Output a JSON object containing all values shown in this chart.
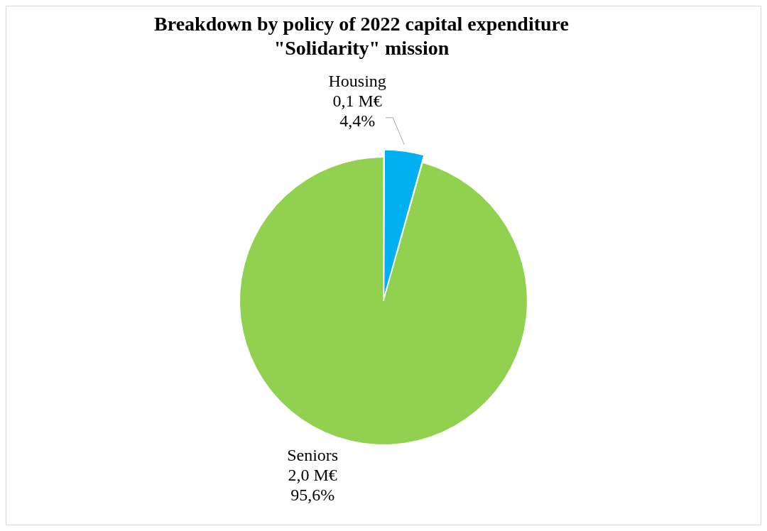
{
  "chart_data": {
    "type": "pie",
    "title": [
      "Breakdown by policy of 2022 capital expenditure",
      "\"Solidarity\" mission"
    ],
    "categories": [
      "Housing",
      "Seniors"
    ],
    "values": [
      4.4,
      95.6
    ],
    "value_labels": [
      "0,1 M€\n4,4%",
      "2,0 M€\n95,6%"
    ],
    "colors": [
      "#00b0f0",
      "#92d050"
    ],
    "legend": false
  }
}
